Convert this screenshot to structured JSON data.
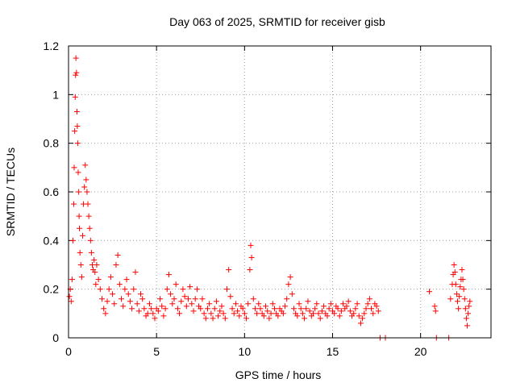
{
  "chart_data": {
    "type": "scatter",
    "title": "Day 063 of 2025, SRMTID for receiver gisb",
    "xlabel": "GPS time / hours",
    "ylabel": "SRMTID / TECUs",
    "xlim": [
      0,
      24
    ],
    "ylim": [
      0,
      1.2
    ],
    "xticks": [
      0,
      5,
      10,
      15,
      20
    ],
    "xtick_labels": [
      "0",
      "5",
      "10",
      "15",
      "20"
    ],
    "yticks": [
      0,
      0.2,
      0.4,
      0.6,
      0.8,
      1.0,
      1.2
    ],
    "ytick_labels": [
      "0",
      "0.2",
      "0.4",
      "0.6",
      "0.8",
      "1",
      "1.2"
    ],
    "grid": true,
    "marker": "plus",
    "color": "#ff0000",
    "series": [
      {
        "name": "SRMTID",
        "x": [
          0.05,
          0.1,
          0.15,
          0.2,
          0.25,
          0.3,
          0.32,
          0.35,
          0.38,
          0.4,
          0.42,
          0.45,
          0.48,
          0.5,
          0.52,
          0.55,
          0.58,
          0.6,
          0.62,
          0.65,
          0.7,
          0.75,
          0.8,
          0.85,
          0.9,
          0.95,
          1.0,
          1.05,
          1.1,
          1.15,
          1.2,
          1.25,
          1.3,
          1.35,
          1.4,
          1.45,
          1.5,
          1.55,
          1.6,
          1.7,
          1.8,
          1.9,
          2.0,
          2.1,
          2.2,
          2.3,
          2.4,
          2.5,
          2.6,
          2.7,
          2.8,
          2.9,
          3.0,
          3.1,
          3.2,
          3.3,
          3.4,
          3.5,
          3.6,
          3.7,
          3.8,
          3.9,
          4.0,
          4.1,
          4.2,
          4.3,
          4.4,
          4.5,
          4.6,
          4.7,
          4.8,
          4.9,
          5.0,
          5.1,
          5.2,
          5.3,
          5.4,
          5.5,
          5.6,
          5.7,
          5.8,
          5.9,
          6.0,
          6.1,
          6.2,
          6.3,
          6.4,
          6.5,
          6.6,
          6.7,
          6.8,
          6.9,
          7.0,
          7.1,
          7.2,
          7.3,
          7.4,
          7.5,
          7.6,
          7.7,
          7.8,
          7.9,
          8.0,
          8.1,
          8.2,
          8.3,
          8.4,
          8.5,
          8.6,
          8.7,
          8.8,
          8.9,
          9.0,
          9.1,
          9.2,
          9.3,
          9.4,
          9.5,
          9.6,
          9.7,
          9.8,
          9.9,
          10.0,
          10.1,
          10.2,
          10.3,
          10.35,
          10.4,
          10.5,
          10.6,
          10.7,
          10.8,
          10.9,
          11.0,
          11.1,
          11.2,
          11.3,
          11.4,
          11.5,
          11.6,
          11.7,
          11.8,
          11.9,
          12.0,
          12.1,
          12.2,
          12.3,
          12.4,
          12.5,
          12.6,
          12.7,
          12.8,
          12.9,
          13.0,
          13.1,
          13.2,
          13.3,
          13.4,
          13.5,
          13.6,
          13.7,
          13.8,
          13.9,
          14.0,
          14.1,
          14.2,
          14.3,
          14.4,
          14.5,
          14.6,
          14.7,
          14.8,
          14.9,
          15.0,
          15.1,
          15.2,
          15.3,
          15.4,
          15.5,
          15.6,
          15.7,
          15.8,
          15.9,
          16.0,
          16.1,
          16.2,
          16.3,
          16.4,
          16.5,
          16.6,
          16.7,
          16.8,
          16.9,
          17.0,
          17.1,
          17.2,
          17.3,
          17.4,
          17.5,
          17.6,
          17.7,
          18.0,
          20.5,
          20.8,
          20.85,
          20.9,
          21.6,
          21.7,
          21.8,
          21.85,
          21.9,
          21.95,
          22.0,
          22.05,
          22.1,
          22.15,
          22.2,
          22.25,
          22.3,
          22.35,
          22.4,
          22.45,
          22.5,
          22.55,
          22.6,
          22.65,
          22.7,
          22.75,
          22.8
        ],
        "y": [
          0.17,
          0.2,
          0.15,
          0.24,
          0.4,
          0.55,
          0.7,
          0.85,
          0.99,
          1.08,
          1.15,
          1.09,
          0.93,
          0.87,
          0.8,
          0.68,
          0.6,
          0.5,
          0.45,
          0.35,
          0.3,
          0.25,
          0.42,
          0.55,
          0.62,
          0.71,
          0.65,
          0.6,
          0.55,
          0.5,
          0.45,
          0.4,
          0.35,
          0.3,
          0.28,
          0.32,
          0.27,
          0.22,
          0.3,
          0.24,
          0.2,
          0.16,
          0.12,
          0.1,
          0.15,
          0.2,
          0.25,
          0.18,
          0.14,
          0.3,
          0.34,
          0.22,
          0.16,
          0.13,
          0.2,
          0.24,
          0.18,
          0.15,
          0.12,
          0.2,
          0.27,
          0.14,
          0.11,
          0.18,
          0.16,
          0.12,
          0.09,
          0.1,
          0.14,
          0.12,
          0.1,
          0.08,
          0.12,
          0.11,
          0.16,
          0.13,
          0.09,
          0.12,
          0.2,
          0.26,
          0.18,
          0.14,
          0.16,
          0.22,
          0.12,
          0.1,
          0.15,
          0.2,
          0.17,
          0.13,
          0.16,
          0.21,
          0.14,
          0.11,
          0.16,
          0.2,
          0.13,
          0.12,
          0.16,
          0.1,
          0.08,
          0.12,
          0.14,
          0.1,
          0.08,
          0.12,
          0.15,
          0.09,
          0.11,
          0.13,
          0.1,
          0.08,
          0.2,
          0.28,
          0.17,
          0.12,
          0.1,
          0.14,
          0.11,
          0.09,
          0.13,
          0.12,
          0.1,
          0.08,
          0.14,
          0.28,
          0.38,
          0.33,
          0.16,
          0.12,
          0.1,
          0.14,
          0.12,
          0.1,
          0.09,
          0.13,
          0.11,
          0.08,
          0.1,
          0.14,
          0.12,
          0.1,
          0.09,
          0.12,
          0.11,
          0.1,
          0.13,
          0.16,
          0.22,
          0.25,
          0.18,
          0.12,
          0.1,
          0.09,
          0.14,
          0.12,
          0.1,
          0.08,
          0.12,
          0.15,
          0.11,
          0.09,
          0.1,
          0.12,
          0.14,
          0.1,
          0.08,
          0.11,
          0.13,
          0.1,
          0.09,
          0.12,
          0.14,
          0.11,
          0.1,
          0.13,
          0.12,
          0.09,
          0.11,
          0.14,
          0.12,
          0.13,
          0.15,
          0.11,
          0.09,
          0.1,
          0.12,
          0.14,
          0.09,
          0.06,
          0.08,
          0.1,
          0.12,
          0.14,
          0.16,
          0.12,
          0.1,
          0.14,
          0.13,
          0.11,
          0.0,
          0.0,
          0.19,
          0.13,
          0.11,
          0.0,
          0.0,
          0.16,
          0.22,
          0.26,
          0.3,
          0.27,
          0.22,
          0.18,
          0.15,
          0.12,
          0.17,
          0.21,
          0.24,
          0.28,
          0.24,
          0.2,
          0.16,
          0.12,
          0.08,
          0.05,
          0.1,
          0.13,
          0.15
        ]
      }
    ]
  }
}
